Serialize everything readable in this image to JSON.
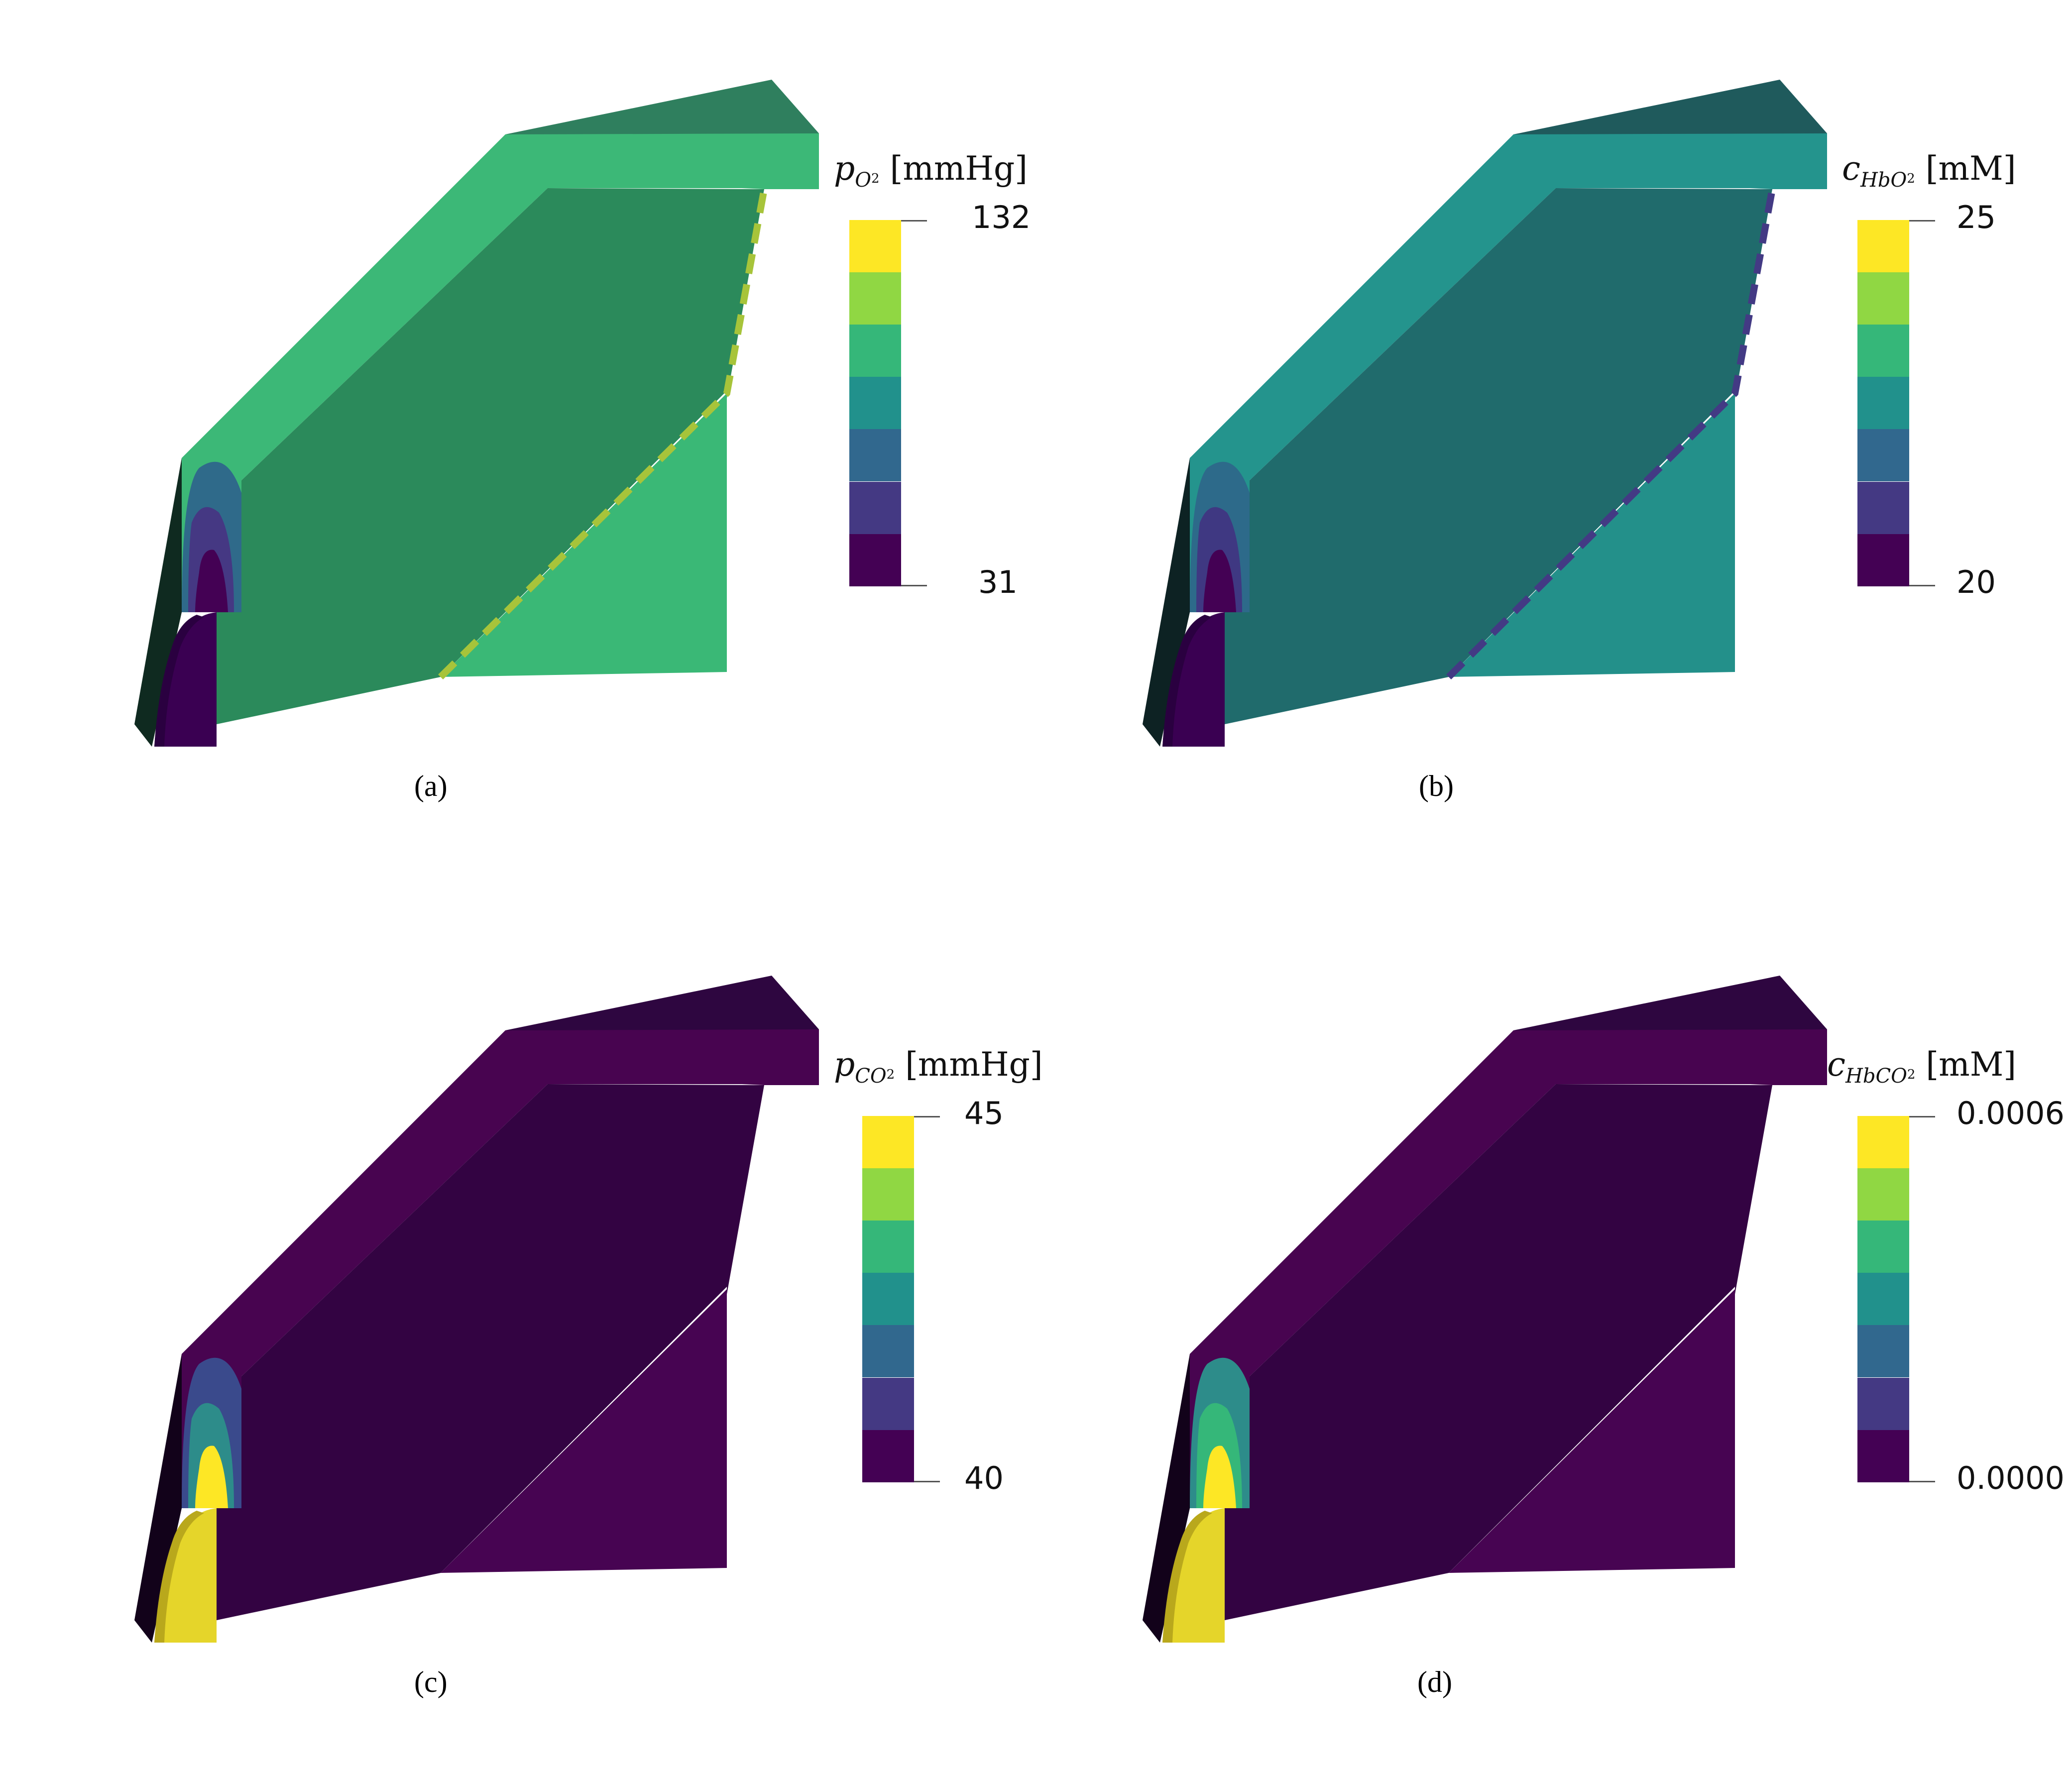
{
  "palette": [
    "#fde725",
    "#90d743",
    "#35b779",
    "#21918c",
    "#31688e",
    "#443983",
    "#440154"
  ],
  "panels": [
    {
      "id": "a",
      "caption": "(a)",
      "colorbar": {
        "symbol": "p",
        "subscript": "O",
        "subscript2": "2",
        "unit": "[mmHg]",
        "max": "132",
        "min": "31"
      },
      "colors": {
        "top": "#2f7f5e",
        "outer": "#3cb877",
        "inner": "#2b8a5b",
        "lower": "#3ab876",
        "plate": "#3bba78",
        "left": "#0f2a20",
        "tube": "#3a0052",
        "tube_dark": "#2a0040",
        "hot1": "#2f6a8a",
        "hot2": "#453883",
        "hot3": "#440154",
        "streak": "#a7c43a"
      }
    },
    {
      "id": "b",
      "caption": "(b)",
      "colorbar": {
        "symbol": "c",
        "subscript": "HbO",
        "subscript2": "2",
        "unit": "[mM]",
        "max": "25",
        "min": "20"
      },
      "colors": {
        "top": "#1f5a5c",
        "outer": "#24948d",
        "inner": "#206b6c",
        "lower": "#23908a",
        "plate": "#24948d",
        "left": "#0d2223",
        "tube": "#3a0052",
        "tube_dark": "#2a0040",
        "hot1": "#2d6a8a",
        "hot2": "#3f3882",
        "hot3": "#440154",
        "streak": "#433a84"
      }
    },
    {
      "id": "c",
      "caption": "(c)",
      "colorbar": {
        "symbol": "p",
        "subscript": "CO",
        "subscript2": "2",
        "unit": "[mmHg]",
        "max": "45",
        "min": "40"
      },
      "colors": {
        "top": "#2e0640",
        "outer": "#480450",
        "inner": "#330342",
        "lower": "#470452",
        "plate": "#470452",
        "left": "#12021a",
        "tube": "#e5d52a",
        "tube_dark": "#b9a81c",
        "hot1": "#3a4a8c",
        "hot2": "#2d8c8a",
        "hot3": "#fde725",
        "streak": "#470452"
      }
    },
    {
      "id": "d",
      "caption": "(d)",
      "colorbar": {
        "symbol": "c",
        "subscript": "HbCO",
        "subscript2": "2",
        "unit": "[mM]",
        "max": "0.0006",
        "min": "0.0000"
      },
      "colors": {
        "top": "#2e0640",
        "outer": "#480450",
        "inner": "#330342",
        "lower": "#470452",
        "plate": "#470452",
        "left": "#12021a",
        "tube": "#e5d52a",
        "tube_dark": "#b9a81c",
        "hot1": "#2d8c8a",
        "hot2": "#35b779",
        "hot3": "#fde725",
        "streak": "#470452"
      }
    }
  ]
}
